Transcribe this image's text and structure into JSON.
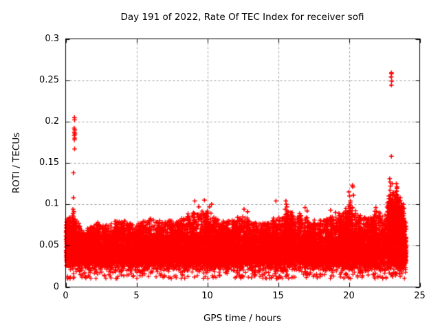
{
  "colors": {
    "background": "#ffffff",
    "marker": "#ff0000",
    "axis": "#000000",
    "grid": "#9e9e9e",
    "text": "#000000"
  },
  "chart_data": {
    "type": "scatter",
    "title": "Day 191 of 2022, Rate Of TEC Index for receiver sofi",
    "xlabel": "GPS time / hours",
    "ylabel": "ROTI / TECUs",
    "xlim": [
      0,
      25
    ],
    "ylim": [
      0,
      0.3
    ],
    "xticks": [
      {
        "value": 0,
        "label": "0"
      },
      {
        "value": 5,
        "label": "5"
      },
      {
        "value": 10,
        "label": "10"
      },
      {
        "value": 15,
        "label": "15"
      },
      {
        "value": 20,
        "label": "20"
      },
      {
        "value": 25,
        "label": "25"
      }
    ],
    "yticks": [
      {
        "value": 0,
        "label": "0"
      },
      {
        "value": 0.05,
        "label": "0.05"
      },
      {
        "value": 0.1,
        "label": "0.1"
      },
      {
        "value": 0.15,
        "label": "0.15"
      },
      {
        "value": 0.2,
        "label": "0.2"
      },
      {
        "value": 0.25,
        "label": "0.25"
      },
      {
        "value": 0.3,
        "label": "0.3"
      }
    ],
    "grid": {
      "show": true,
      "style": "dashed",
      "color": "#9e9e9e"
    },
    "marker": {
      "shape": "plus",
      "color": "#ff0000",
      "size": 7
    },
    "legend": null,
    "baseline_band": {
      "solid_y_range": [
        0.02,
        0.06
      ],
      "typical_spike_top": 0.08,
      "x_data_range": [
        0,
        24.05
      ]
    },
    "envelope": [
      [
        0,
        0.085
      ],
      [
        0.4,
        0.092
      ],
      [
        0.8,
        0.088
      ],
      [
        1.2,
        0.072
      ],
      [
        1.8,
        0.075
      ],
      [
        2.4,
        0.082
      ],
      [
        3,
        0.078
      ],
      [
        3.6,
        0.083
      ],
      [
        4.2,
        0.085
      ],
      [
        4.8,
        0.078
      ],
      [
        5.4,
        0.083
      ],
      [
        6,
        0.088
      ],
      [
        6.6,
        0.082
      ],
      [
        7.2,
        0.085
      ],
      [
        7.8,
        0.083
      ],
      [
        8.4,
        0.088
      ],
      [
        9,
        0.096
      ],
      [
        9.6,
        0.098
      ],
      [
        10.2,
        0.096
      ],
      [
        10.8,
        0.086
      ],
      [
        11.4,
        0.083
      ],
      [
        12,
        0.088
      ],
      [
        12.6,
        0.092
      ],
      [
        13.2,
        0.084
      ],
      [
        13.8,
        0.079
      ],
      [
        14.4,
        0.083
      ],
      [
        15,
        0.088
      ],
      [
        15.6,
        0.098
      ],
      [
        16.2,
        0.09
      ],
      [
        16.8,
        0.093
      ],
      [
        17.4,
        0.086
      ],
      [
        18,
        0.082
      ],
      [
        18.6,
        0.09
      ],
      [
        19.2,
        0.092
      ],
      [
        19.8,
        0.096
      ],
      [
        20.2,
        0.108
      ],
      [
        20.6,
        0.094
      ],
      [
        21.2,
        0.088
      ],
      [
        21.8,
        0.093
      ],
      [
        22.4,
        0.096
      ],
      [
        23,
        0.124
      ],
      [
        23.4,
        0.12
      ],
      [
        23.8,
        0.106
      ],
      [
        24.05,
        0.08
      ]
    ],
    "outliers": [
      [
        0.62,
        0.205
      ],
      [
        0.63,
        0.202
      ],
      [
        0.6,
        0.192
      ],
      [
        0.64,
        0.19
      ],
      [
        0.62,
        0.187
      ],
      [
        0.65,
        0.185
      ],
      [
        0.61,
        0.183
      ],
      [
        0.64,
        0.18
      ],
      [
        0.62,
        0.178
      ],
      [
        0.63,
        0.167
      ],
      [
        0.55,
        0.138
      ],
      [
        0.55,
        0.108
      ],
      [
        0.52,
        0.094
      ],
      [
        0.58,
        0.091
      ],
      [
        9.12,
        0.104
      ],
      [
        9.4,
        0.097
      ],
      [
        9.8,
        0.105
      ],
      [
        10.15,
        0.097
      ],
      [
        10.3,
        0.1
      ],
      [
        12.6,
        0.094
      ],
      [
        12.85,
        0.091
      ],
      [
        14.85,
        0.104
      ],
      [
        15.55,
        0.104
      ],
      [
        15.58,
        0.1
      ],
      [
        15.62,
        0.097
      ],
      [
        15.5,
        0.094
      ],
      [
        15.7,
        0.091
      ],
      [
        16.9,
        0.096
      ],
      [
        17.05,
        0.092
      ],
      [
        18.7,
        0.093
      ],
      [
        19.05,
        0.09
      ],
      [
        19.3,
        0.089
      ],
      [
        20.0,
        0.115
      ],
      [
        20.05,
        0.11
      ],
      [
        20.1,
        0.104
      ],
      [
        20.25,
        0.123
      ],
      [
        20.28,
        0.121
      ],
      [
        20.32,
        0.111
      ],
      [
        21.9,
        0.096
      ],
      [
        21.95,
        0.091
      ],
      [
        22.88,
        0.131
      ],
      [
        22.9,
        0.127
      ],
      [
        22.93,
        0.122
      ],
      [
        22.9,
        0.117
      ],
      [
        22.94,
        0.112
      ],
      [
        22.9,
        0.107
      ],
      [
        22.95,
        0.102
      ],
      [
        22.9,
        0.097
      ],
      [
        23.0,
        0.259
      ],
      [
        23.01,
        0.258
      ],
      [
        22.98,
        0.254
      ],
      [
        23.02,
        0.249
      ],
      [
        23.0,
        0.244
      ],
      [
        23.0,
        0.158
      ],
      [
        23.06,
        0.125
      ],
      [
        23.35,
        0.125
      ],
      [
        23.4,
        0.121
      ],
      [
        23.37,
        0.116
      ],
      [
        23.42,
        0.111
      ],
      [
        23.45,
        0.106
      ],
      [
        23.4,
        0.101
      ],
      [
        23.36,
        0.097
      ],
      [
        23.5,
        0.093
      ],
      [
        23.85,
        0.1
      ],
      [
        23.9,
        0.095
      ]
    ],
    "generator": {
      "seed": 20220191,
      "x_range": [
        0.02,
        24.05
      ],
      "core": {
        "count": 10500,
        "y_min": 0.019,
        "y_max": 0.063
      },
      "stragglers": {
        "count": 330,
        "y_min": 0.01,
        "y_max": 0.022
      },
      "mid": {
        "count": 2600,
        "base": 0.058,
        "power": 1.8,
        "fraction": 0.85
      },
      "spikes": {
        "columns": 290,
        "base": 0.055,
        "step": 0.0036,
        "jitter": 0.06,
        "power": 0.75
      },
      "extra_spike_regions": [
        {
          "x_range": [
            22.7,
            24.0
          ],
          "columns": 34
        },
        {
          "x_range": [
            0.05,
            0.75
          ],
          "columns": 10
        },
        {
          "x_range": [
            19.8,
            20.4
          ],
          "columns": 8
        },
        {
          "x_range": [
            15.3,
            15.8
          ],
          "columns": 6
        }
      ]
    }
  }
}
